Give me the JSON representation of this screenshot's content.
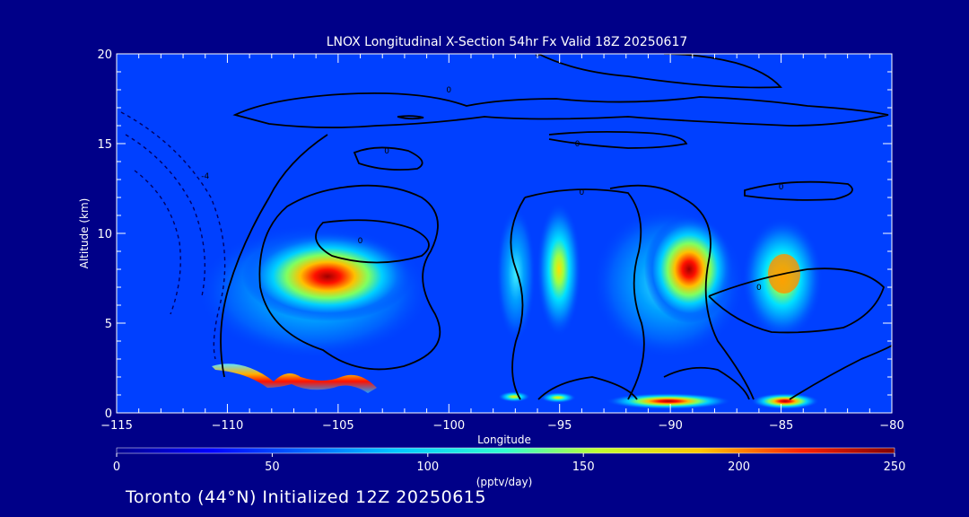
{
  "chart_data": {
    "type": "heatmap",
    "title": "LNOX Longitudinal X-Section 54hr  Fx Valid 18Z 20250617",
    "xlabel": "Longitude",
    "ylabel": "Altitude (km)",
    "xlim": [
      -115,
      -80
    ],
    "ylim": [
      0,
      20
    ],
    "xticks": [
      -115,
      -110,
      -105,
      -100,
      -95,
      -90,
      -85,
      -80
    ],
    "yticks": [
      0,
      5,
      10,
      15,
      20
    ],
    "colorbar": {
      "label": "(pptv/day)",
      "range": [
        0,
        250
      ],
      "ticks": [
        0,
        50,
        100,
        150,
        200,
        250
      ]
    },
    "contour_labels": [
      {
        "lon": -111.0,
        "alt": 13.2,
        "text": "-4"
      },
      {
        "lon": -100.0,
        "alt": 18.0,
        "text": "0"
      },
      {
        "lon": -104.0,
        "alt": 9.6,
        "text": "0"
      },
      {
        "lon": -102.8,
        "alt": 14.6,
        "text": "0"
      },
      {
        "lon": -94.2,
        "alt": 15.0,
        "text": "0"
      },
      {
        "lon": -94.0,
        "alt": 12.3,
        "text": "0"
      },
      {
        "lon": -85.0,
        "alt": 12.6,
        "text": "0"
      },
      {
        "lon": -86.0,
        "alt": 7.0,
        "text": "0"
      },
      {
        "lon": -96.0,
        "alt": 20.0,
        "text": "0"
      }
    ],
    "blobs": [
      {
        "name": "west-upper",
        "lon": -106.0,
        "alt": 7.5,
        "peak": 240
      },
      {
        "name": "west-low",
        "lon": -105.5,
        "alt": 1.6,
        "peak": 230
      },
      {
        "name": "central-a",
        "lon": -97.0,
        "alt": 8.0,
        "peak": 90
      },
      {
        "name": "central-b",
        "lon": -95.0,
        "alt": 8.0,
        "peak": 140
      },
      {
        "name": "mid",
        "lon": -89.0,
        "alt": 8.0,
        "peak": 250
      },
      {
        "name": "east",
        "lon": -85.0,
        "alt": 7.5,
        "peak": 180
      },
      {
        "name": "surface-center",
        "lon": -89.5,
        "alt": 0.5,
        "peak": 220
      },
      {
        "name": "surface-east",
        "lon": -85.0,
        "alt": 0.5,
        "peak": 220
      }
    ]
  },
  "footer": "Toronto (44°N) Initialized 12Z 20250615"
}
